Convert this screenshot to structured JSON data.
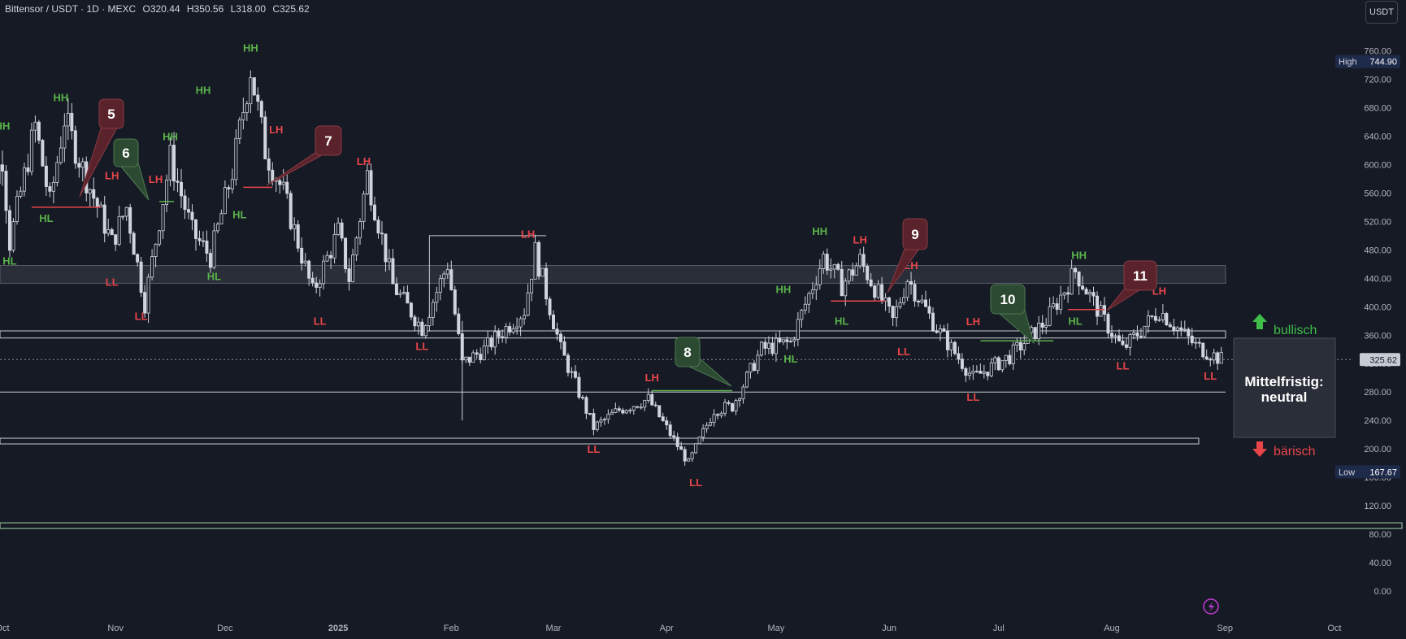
{
  "header": {
    "symbol": "Bittensor / USDT · 1D · MEXC",
    "open": "O320.44",
    "high": "H350.56",
    "low": "L318.00",
    "close": "C325.62"
  },
  "currency_button": "USDT",
  "colors": {
    "background": "#161a25",
    "candle": "#d1d4dc",
    "green_label": "#5ab34a",
    "red_label": "#e8454a",
    "bubble_red": "#5a232b",
    "bubble_green": "#2c4a31"
  },
  "icons": {
    "lightning": "lightning-icon",
    "arrow_up": "arrow-up-icon",
    "arrow_down": "arrow-down-icon"
  },
  "chart_data": {
    "type": "candlestick",
    "y_ticks": [
      "0.00",
      "40.00",
      "80.00",
      "120.00",
      "160.00",
      "200.00",
      "240.00",
      "280.00",
      "320.00",
      "360.00",
      "400.00",
      "440.00",
      "480.00",
      "520.00",
      "560.00",
      "600.00",
      "640.00",
      "680.00",
      "720.00",
      "760.00"
    ],
    "x_ticks": [
      "Oct",
      "Nov",
      "Dec",
      "2025",
      "Feb",
      "Mar",
      "Apr",
      "May",
      "Jun",
      "Jul",
      "Aug",
      "Sep",
      "Oct"
    ],
    "ylim": [
      0,
      800
    ],
    "price_tags": [
      {
        "label": "High",
        "value": "744.90"
      },
      {
        "label": "Low",
        "value": "167.67"
      },
      {
        "label": "",
        "value": "325.62"
      }
    ],
    "zones": [
      {
        "name": "resistance-zone-grey",
        "from": 433,
        "to": 458
      },
      {
        "name": "upper-box",
        "from": 356,
        "to": 366
      },
      {
        "name": "lower-box",
        "from": 207,
        "to": 215
      },
      {
        "name": "bottom-zone",
        "from": 88,
        "to": 96
      }
    ],
    "levels": [
      {
        "name": "level-280",
        "value": 280
      },
      {
        "name": "level-current",
        "value": 325.62,
        "dotted": true
      }
    ],
    "swings": [
      {
        "text": "HH",
        "date": "2024-10-01",
        "price": 640,
        "pos": "above",
        "color": "green"
      },
      {
        "text": "HL",
        "date": "2024-10-03",
        "price": 480,
        "pos": "below",
        "color": "green"
      },
      {
        "text": "HH",
        "date": "2024-10-17",
        "price": 680,
        "pos": "above",
        "color": "green"
      },
      {
        "text": "HL",
        "date": "2024-10-13",
        "price": 540,
        "pos": "below",
        "color": "green"
      },
      {
        "text": "LH",
        "date": "2024-10-31",
        "price": 570,
        "pos": "above",
        "color": "red"
      },
      {
        "text": "LL",
        "date": "2024-10-31",
        "price": 450,
        "pos": "below",
        "color": "red"
      },
      {
        "text": "LL",
        "date": "2024-11-08",
        "price": 402,
        "pos": "below",
        "color": "red"
      },
      {
        "text": "LH",
        "date": "2024-11-12",
        "price": 565,
        "pos": "above",
        "color": "red"
      },
      {
        "text": "HH",
        "date": "2024-11-16",
        "price": 625,
        "pos": "above",
        "color": "green"
      },
      {
        "text": "HL",
        "date": "2024-11-28",
        "price": 458,
        "pos": "below",
        "color": "green"
      },
      {
        "text": "HH",
        "date": "2024-11-25",
        "price": 690,
        "pos": "above",
        "color": "green"
      },
      {
        "text": "HH",
        "date": "2024-12-08",
        "price": 750,
        "pos": "above",
        "color": "green"
      },
      {
        "text": "HL",
        "date": "2024-12-05",
        "price": 545,
        "pos": "below",
        "color": "green"
      },
      {
        "text": "LH",
        "date": "2024-12-15",
        "price": 635,
        "pos": "above",
        "color": "red"
      },
      {
        "text": "LL",
        "date": "2024-12-27",
        "price": 395,
        "pos": "below",
        "color": "red"
      },
      {
        "text": "LH",
        "date": "2025-01-08",
        "price": 590,
        "pos": "above",
        "color": "red"
      },
      {
        "text": "LL",
        "date": "2025-01-24",
        "price": 360,
        "pos": "below",
        "color": "red"
      },
      {
        "text": "LH",
        "date": "2025-02-22",
        "price": 488,
        "pos": "above",
        "color": "red"
      },
      {
        "text": "LL",
        "date": "2025-03-12",
        "price": 215,
        "pos": "below",
        "color": "red"
      },
      {
        "text": "LH",
        "date": "2025-03-28",
        "price": 286,
        "pos": "above",
        "color": "red"
      },
      {
        "text": "LL",
        "date": "2025-04-09",
        "price": 168,
        "pos": "below",
        "color": "red"
      },
      {
        "text": "HL",
        "date": "2025-05-05",
        "price": 342,
        "pos": "below",
        "color": "green"
      },
      {
        "text": "HH",
        "date": "2025-05-03",
        "price": 410,
        "pos": "above",
        "color": "green"
      },
      {
        "text": "HH",
        "date": "2025-05-13",
        "price": 492,
        "pos": "above",
        "color": "green"
      },
      {
        "text": "HL",
        "date": "2025-05-19",
        "price": 395,
        "pos": "below",
        "color": "green"
      },
      {
        "text": "LH",
        "date": "2025-05-24",
        "price": 480,
        "pos": "above",
        "color": "red"
      },
      {
        "text": "LL",
        "date": "2025-06-05",
        "price": 352,
        "pos": "below",
        "color": "red"
      },
      {
        "text": "LH",
        "date": "2025-06-07",
        "price": 444,
        "pos": "above",
        "color": "red"
      },
      {
        "text": "LH",
        "date": "2025-06-24",
        "price": 365,
        "pos": "above",
        "color": "red"
      },
      {
        "text": "LL",
        "date": "2025-06-24",
        "price": 288,
        "pos": "below",
        "color": "red"
      },
      {
        "text": "HH",
        "date": "2025-07-23",
        "price": 458,
        "pos": "above",
        "color": "green"
      },
      {
        "text": "HL",
        "date": "2025-07-22",
        "price": 395,
        "pos": "below",
        "color": "green"
      },
      {
        "text": "LH",
        "date": "2025-08-14",
        "price": 408,
        "pos": "above",
        "color": "red"
      },
      {
        "text": "LL",
        "date": "2025-08-04",
        "price": 332,
        "pos": "below",
        "color": "red"
      },
      {
        "text": "LL",
        "date": "2025-08-28",
        "price": 318,
        "pos": "below",
        "color": "red"
      }
    ],
    "bubbles": [
      {
        "num": "5",
        "color": "red"
      },
      {
        "num": "6",
        "color": "green"
      },
      {
        "num": "7",
        "color": "red"
      },
      {
        "num": "8",
        "color": "green"
      },
      {
        "num": "9",
        "color": "red"
      },
      {
        "num": "10",
        "color": "green"
      },
      {
        "num": "11",
        "color": "red"
      }
    ],
    "legend": {
      "bullish": "bullisch",
      "bearish": "bärisch",
      "box_line1": "Mittelfristig:",
      "box_line2": "neutral"
    },
    "ohlc_waypoints": [
      [
        "2024-09-24",
        520
      ],
      [
        "2024-10-01",
        610
      ],
      [
        "2024-10-03",
        490
      ],
      [
        "2024-10-10",
        655
      ],
      [
        "2024-10-14",
        545
      ],
      [
        "2024-10-18",
        665
      ],
      [
        "2024-10-24",
        580
      ],
      [
        "2024-10-31",
        490
      ],
      [
        "2024-11-04",
        540
      ],
      [
        "2024-11-09",
        405
      ],
      [
        "2024-11-16",
        610
      ],
      [
        "2024-11-22",
        505
      ],
      [
        "2024-11-27",
        470
      ],
      [
        "2024-12-03",
        590
      ],
      [
        "2024-12-08",
        735
      ],
      [
        "2024-12-12",
        620
      ],
      [
        "2024-12-17",
        560
      ],
      [
        "2024-12-25",
        420
      ],
      [
        "2025-01-01",
        505
      ],
      [
        "2025-01-04",
        440
      ],
      [
        "2025-01-09",
        585
      ],
      [
        "2025-01-16",
        430
      ],
      [
        "2025-01-24",
        370
      ],
      [
        "2025-01-31",
        460
      ],
      [
        "2025-02-04",
        320
      ],
      [
        "2025-02-10",
        340
      ],
      [
        "2025-02-21",
        395
      ],
      [
        "2025-02-24",
        478
      ],
      [
        "2025-03-03",
        340
      ],
      [
        "2025-03-12",
        230
      ],
      [
        "2025-03-19",
        255
      ],
      [
        "2025-03-27",
        270
      ],
      [
        "2025-04-07",
        180
      ],
      [
        "2025-04-14",
        255
      ],
      [
        "2025-04-19",
        260
      ],
      [
        "2025-04-27",
        340
      ],
      [
        "2025-05-05",
        350
      ],
      [
        "2025-05-14",
        470
      ],
      [
        "2025-05-19",
        430
      ],
      [
        "2025-05-24",
        465
      ],
      [
        "2025-06-02",
        380
      ],
      [
        "2025-06-06",
        440
      ],
      [
        "2025-06-14",
        370
      ],
      [
        "2025-06-24",
        300
      ],
      [
        "2025-07-04",
        330
      ],
      [
        "2025-07-14",
        380
      ],
      [
        "2025-07-22",
        450
      ],
      [
        "2025-07-30",
        380
      ],
      [
        "2025-08-04",
        340
      ],
      [
        "2025-08-14",
        395
      ],
      [
        "2025-08-24",
        345
      ],
      [
        "2025-08-31",
        326
      ]
    ]
  }
}
